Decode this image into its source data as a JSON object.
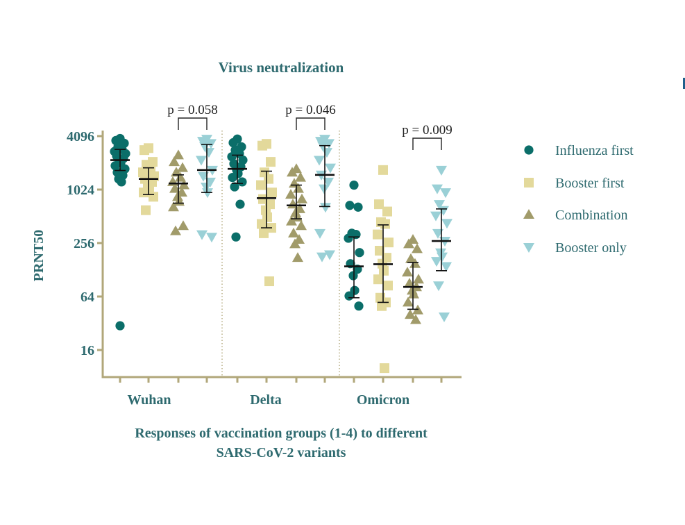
{
  "chart_data": {
    "type": "scatter",
    "title": "Virus neutralization",
    "ylabel": "PRNT50",
    "xlabel_lines": [
      "Responses of vaccination groups (1-4) to different",
      "SARS-CoV-2 variants"
    ],
    "y_scale": "log2",
    "ylim": [
      8,
      4096
    ],
    "yticks": [
      "16",
      "64",
      "256",
      "1024",
      "4096"
    ],
    "categories": [
      "Wuhan",
      "Delta",
      "Omicron"
    ],
    "series": [
      {
        "name": "Influenza first",
        "marker": "circle",
        "color": "#0b6e69"
      },
      {
        "name": "Booster first",
        "marker": "square",
        "color": "#e3d99b"
      },
      {
        "name": "Combination",
        "marker": "triangle-up",
        "color": "#a19b6a"
      },
      {
        "name": "Booster only",
        "marker": "triangle-down",
        "color": "#9ad0d6"
      }
    ],
    "groups": [
      {
        "variant": "Wuhan",
        "series": "Influenza first",
        "median": 2200,
        "err": [
          1680,
          2900
        ],
        "points": [
          3850,
          3650,
          3400,
          3100,
          2900,
          2750,
          2600,
          2450,
          2300,
          2200,
          2050,
          1900,
          1750,
          1600,
          1480,
          1350,
          1250,
          30
        ]
      },
      {
        "variant": "Wuhan",
        "series": "Booster first",
        "median": 1350,
        "err": [
          900,
          1800
        ],
        "points": [
          3000,
          2850,
          2100,
          1950,
          1750,
          1600,
          1450,
          1350,
          1250,
          1150,
          1050,
          950,
          850,
          600
        ]
      },
      {
        "variant": "Wuhan",
        "series": "Combination",
        "median": 1200,
        "err": [
          720,
          1500
        ],
        "points": [
          2500,
          2100,
          1800,
          1600,
          1400,
          1250,
          1150,
          1050,
          950,
          850,
          750,
          650,
          400,
          350
        ]
      },
      {
        "variant": "Wuhan",
        "series": "Booster only",
        "median": 1700,
        "err": [
          950,
          3300
        ],
        "points": [
          3800,
          3600,
          3400,
          3150,
          2700,
          2200,
          1700,
          1450,
          1250,
          1100,
          950,
          320,
          300
        ]
      },
      {
        "variant": "Delta",
        "series": "Influenza first",
        "median": 1750,
        "err": [
          1200,
          2500
        ],
        "points": [
          3800,
          3450,
          3100,
          2850,
          2600,
          2400,
          2200,
          2000,
          1850,
          1700,
          1550,
          1400,
          1250,
          1100,
          700,
          300
        ]
      },
      {
        "variant": "Delta",
        "series": "Booster first",
        "median": 820,
        "err": [
          380,
          1650
        ],
        "points": [
          3350,
          3200,
          2100,
          1600,
          1350,
          1150,
          950,
          800,
          700,
          600,
          500,
          420,
          380,
          330,
          95
        ]
      },
      {
        "variant": "Delta",
        "series": "Combination",
        "median": 680,
        "err": [
          480,
          1150
        ],
        "points": [
          1750,
          1600,
          1400,
          1200,
          1050,
          900,
          800,
          700,
          620,
          560,
          500,
          450,
          400,
          330,
          280,
          250,
          175
        ]
      },
      {
        "variant": "Delta",
        "series": "Booster only",
        "median": 1500,
        "err": [
          660,
          3200
        ],
        "points": [
          3800,
          3600,
          3400,
          3200,
          2700,
          2200,
          1800,
          1500,
          1250,
          1050,
          650,
          330,
          190,
          180
        ]
      },
      {
        "variant": "Omicron",
        "series": "Influenza first",
        "median": 140,
        "err": [
          62,
          300
        ],
        "points": [
          1150,
          680,
          650,
          330,
          320,
          290,
          200,
          150,
          130,
          110,
          75,
          65,
          50
        ]
      },
      {
        "variant": "Omicron",
        "series": "Booster first",
        "median": 148,
        "err": [
          55,
          410
        ],
        "points": [
          1700,
          700,
          580,
          440,
          420,
          320,
          260,
          210,
          175,
          150,
          125,
          100,
          85,
          62,
          55,
          50,
          10
        ]
      },
      {
        "variant": "Omicron",
        "series": "Combination",
        "median": 82,
        "err": [
          46,
          155
        ],
        "points": [
          280,
          250,
          220,
          170,
          150,
          120,
          100,
          90,
          82,
          75,
          68,
          55,
          45,
          40,
          35
        ]
      },
      {
        "variant": "Omicron",
        "series": "Booster only",
        "median": 270,
        "err": [
          125,
          620
        ],
        "points": [
          1700,
          1050,
          950,
          700,
          600,
          520,
          430,
          330,
          270,
          200,
          180,
          160,
          140,
          85,
          38
        ]
      }
    ],
    "annotations": [
      {
        "text": "p = 0.058",
        "between": [
          "Wuhan:Combination",
          "Wuhan:Booster only"
        ]
      },
      {
        "text": "p = 0.046",
        "between": [
          "Delta:Combination",
          "Delta:Booster only"
        ]
      },
      {
        "text": "p = 0.009",
        "between": [
          "Omicron:Combination",
          "Omicron:Booster only"
        ]
      }
    ],
    "legend_position": "right",
    "grid": false
  }
}
